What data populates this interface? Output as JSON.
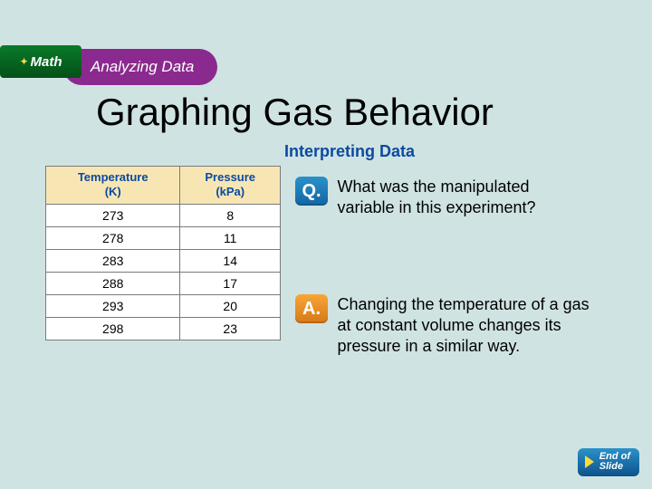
{
  "header": {
    "math_label": "Math",
    "analyzing_label": "Analyzing Data"
  },
  "title": "Graphing Gas Behavior",
  "subtitle": "Interpreting Data",
  "data_table": {
    "col1_header_line1": "Temperature",
    "col1_header_line2": "(K)",
    "col2_header_line1": "Pressure",
    "col2_header_line2": "(kPa)",
    "rows": [
      {
        "t": "273",
        "p": "8"
      },
      {
        "t": "278",
        "p": "11"
      },
      {
        "t": "283",
        "p": "14"
      },
      {
        "t": "288",
        "p": "17"
      },
      {
        "t": "293",
        "p": "20"
      },
      {
        "t": "298",
        "p": "23"
      }
    ]
  },
  "question": {
    "icon_letter": "Q.",
    "text": "What was the manipulated variable in this experiment?"
  },
  "answer": {
    "icon_letter": "A.",
    "text": "Changing the temperature of a gas at constant volume changes its pressure in a similar way."
  },
  "end_slide": {
    "line1": "End of",
    "line2": "Slide"
  },
  "colors": {
    "page_bg": "#d0e3e3",
    "title_color": "#000000",
    "subtitle_color": "#0b4aa0",
    "table_header_bg": "#f7e6b3",
    "table_header_fg": "#0b4aa0",
    "q_icon_bg": "#1365a5",
    "a_icon_bg": "#d6781a",
    "math_badge_bg": "#045018",
    "analyzing_bg": "#8b2a8e"
  }
}
